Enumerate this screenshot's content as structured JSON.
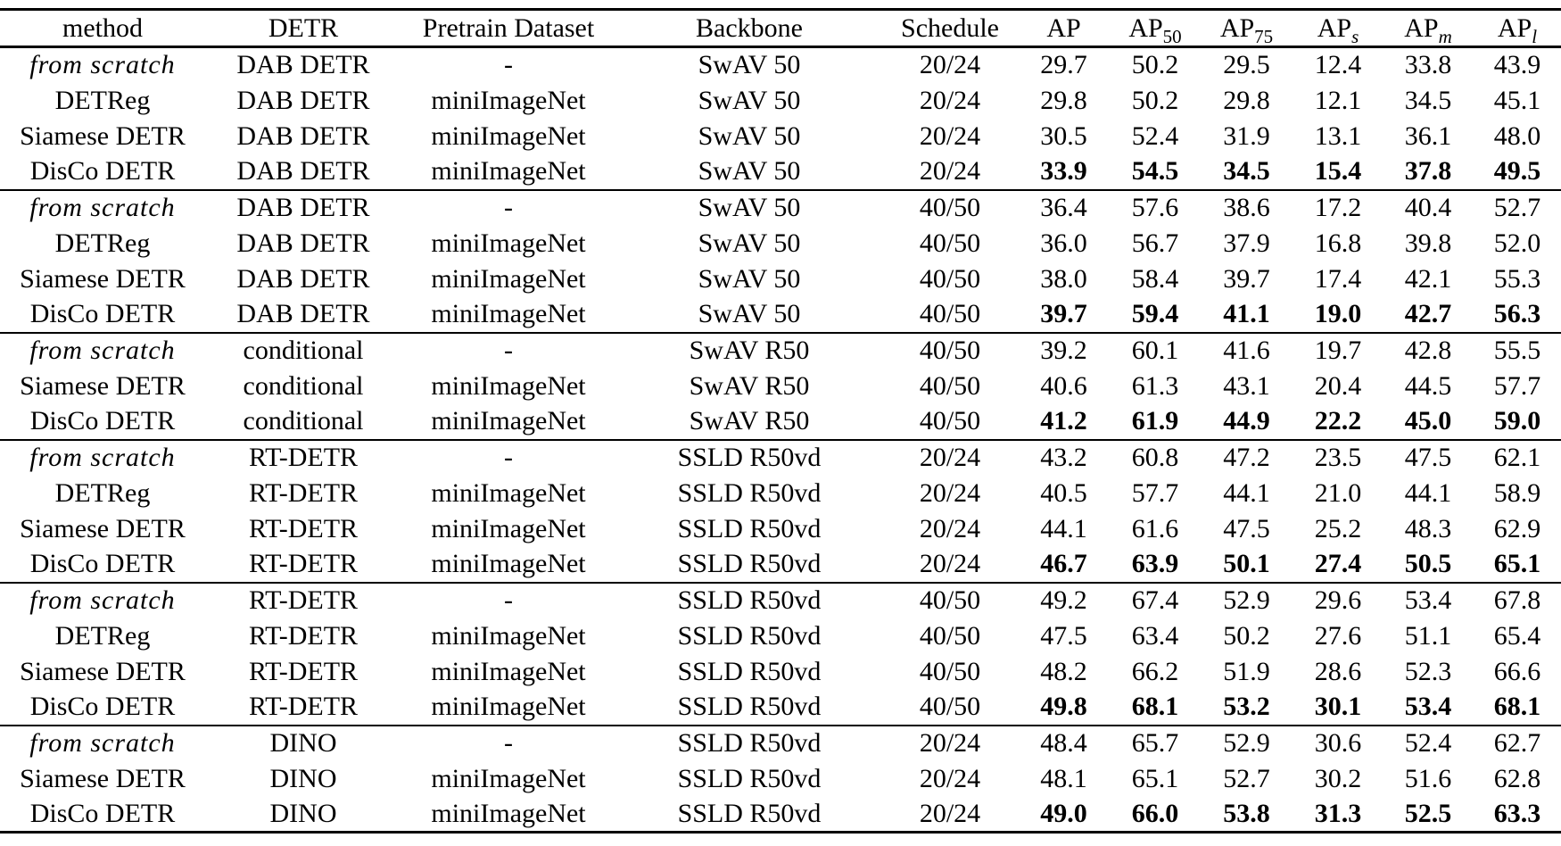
{
  "page": {
    "background_color": "#ffffff",
    "text_color": "#000000",
    "rule_color": "#000000"
  },
  "table": {
    "headers": [
      {
        "text": "method",
        "sub": ""
      },
      {
        "text": "DETR",
        "sub": ""
      },
      {
        "text": "Pretrain Dataset",
        "sub": ""
      },
      {
        "text": "Backbone",
        "sub": ""
      },
      {
        "text": "Schedule",
        "sub": ""
      },
      {
        "text": "AP",
        "sub": ""
      },
      {
        "text": "AP",
        "sub": "50"
      },
      {
        "text": "AP",
        "sub": "75"
      },
      {
        "text": "AP",
        "sub": "s"
      },
      {
        "text": "AP",
        "sub": "m"
      },
      {
        "text": "AP",
        "sub": "l"
      }
    ],
    "groups": [
      {
        "rows": [
          {
            "method": "from scratch",
            "method_italic": true,
            "detr": "DAB DETR",
            "pretrain": "-",
            "backbone": "SwAV 50",
            "schedule": "20/24",
            "bold": false,
            "ap": [
              "29.7",
              "50.2",
              "29.5",
              "12.4",
              "33.8",
              "43.9"
            ]
          },
          {
            "method": "DETReg",
            "method_italic": false,
            "detr": "DAB DETR",
            "pretrain": "miniImageNet",
            "backbone": "SwAV 50",
            "schedule": "20/24",
            "bold": false,
            "ap": [
              "29.8",
              "50.2",
              "29.8",
              "12.1",
              "34.5",
              "45.1"
            ]
          },
          {
            "method": "Siamese DETR",
            "method_italic": false,
            "detr": "DAB DETR",
            "pretrain": "miniImageNet",
            "backbone": "SwAV 50",
            "schedule": "20/24",
            "bold": false,
            "ap": [
              "30.5",
              "52.4",
              "31.9",
              "13.1",
              "36.1",
              "48.0"
            ]
          },
          {
            "method": "DisCo DETR",
            "method_italic": false,
            "detr": "DAB DETR",
            "pretrain": "miniImageNet",
            "backbone": "SwAV 50",
            "schedule": "20/24",
            "bold": true,
            "ap": [
              "33.9",
              "54.5",
              "34.5",
              "15.4",
              "37.8",
              "49.5"
            ]
          }
        ]
      },
      {
        "rows": [
          {
            "method": "from scratch",
            "method_italic": true,
            "detr": "DAB DETR",
            "pretrain": "-",
            "backbone": "SwAV 50",
            "schedule": "40/50",
            "bold": false,
            "ap": [
              "36.4",
              "57.6",
              "38.6",
              "17.2",
              "40.4",
              "52.7"
            ]
          },
          {
            "method": "DETReg",
            "method_italic": false,
            "detr": "DAB DETR",
            "pretrain": "miniImageNet",
            "backbone": "SwAV 50",
            "schedule": "40/50",
            "bold": false,
            "ap": [
              "36.0",
              "56.7",
              "37.9",
              "16.8",
              "39.8",
              "52.0"
            ]
          },
          {
            "method": "Siamese DETR",
            "method_italic": false,
            "detr": "DAB DETR",
            "pretrain": "miniImageNet",
            "backbone": "SwAV 50",
            "schedule": "40/50",
            "bold": false,
            "ap": [
              "38.0",
              "58.4",
              "39.7",
              "17.4",
              "42.1",
              "55.3"
            ]
          },
          {
            "method": "DisCo DETR",
            "method_italic": false,
            "detr": "DAB DETR",
            "pretrain": "miniImageNet",
            "backbone": "SwAV 50",
            "schedule": "40/50",
            "bold": true,
            "ap": [
              "39.7",
              "59.4",
              "41.1",
              "19.0",
              "42.7",
              "56.3"
            ]
          }
        ]
      },
      {
        "rows": [
          {
            "method": "from scratch",
            "method_italic": true,
            "detr": "conditional",
            "pretrain": "-",
            "backbone": "SwAV R50",
            "schedule": "40/50",
            "bold": false,
            "ap": [
              "39.2",
              "60.1",
              "41.6",
              "19.7",
              "42.8",
              "55.5"
            ]
          },
          {
            "method": "Siamese DETR",
            "method_italic": false,
            "detr": "conditional",
            "pretrain": "miniImageNet",
            "backbone": "SwAV R50",
            "schedule": "40/50",
            "bold": false,
            "ap": [
              "40.6",
              "61.3",
              "43.1",
              "20.4",
              "44.5",
              "57.7"
            ]
          },
          {
            "method": "DisCo DETR",
            "method_italic": false,
            "detr": "conditional",
            "pretrain": "miniImageNet",
            "backbone": "SwAV R50",
            "schedule": "40/50",
            "bold": true,
            "ap": [
              "41.2",
              "61.9",
              "44.9",
              "22.2",
              "45.0",
              "59.0"
            ]
          }
        ]
      },
      {
        "rows": [
          {
            "method": "from scratch",
            "method_italic": true,
            "detr": "RT-DETR",
            "pretrain": "-",
            "backbone": "SSLD R50vd",
            "schedule": "20/24",
            "bold": false,
            "ap": [
              "43.2",
              "60.8",
              "47.2",
              "23.5",
              "47.5",
              "62.1"
            ]
          },
          {
            "method": "DETReg",
            "method_italic": false,
            "detr": "RT-DETR",
            "pretrain": "miniImageNet",
            "backbone": "SSLD R50vd",
            "schedule": "20/24",
            "bold": false,
            "ap": [
              "40.5",
              "57.7",
              "44.1",
              "21.0",
              "44.1",
              "58.9"
            ]
          },
          {
            "method": "Siamese DETR",
            "method_italic": false,
            "detr": "RT-DETR",
            "pretrain": "miniImageNet",
            "backbone": "SSLD R50vd",
            "schedule": "20/24",
            "bold": false,
            "ap": [
              "44.1",
              "61.6",
              "47.5",
              "25.2",
              "48.3",
              "62.9"
            ]
          },
          {
            "method": "DisCo DETR",
            "method_italic": false,
            "detr": "RT-DETR",
            "pretrain": "miniImageNet",
            "backbone": "SSLD R50vd",
            "schedule": "20/24",
            "bold": true,
            "ap": [
              "46.7",
              "63.9",
              "50.1",
              "27.4",
              "50.5",
              "65.1"
            ]
          }
        ]
      },
      {
        "rows": [
          {
            "method": "from scratch",
            "method_italic": true,
            "detr": "RT-DETR",
            "pretrain": "-",
            "backbone": "SSLD R50vd",
            "schedule": "40/50",
            "bold": false,
            "ap": [
              "49.2",
              "67.4",
              "52.9",
              "29.6",
              "53.4",
              "67.8"
            ]
          },
          {
            "method": "DETReg",
            "method_italic": false,
            "detr": "RT-DETR",
            "pretrain": "miniImageNet",
            "backbone": "SSLD R50vd",
            "schedule": "40/50",
            "bold": false,
            "ap": [
              "47.5",
              "63.4",
              "50.2",
              "27.6",
              "51.1",
              "65.4"
            ]
          },
          {
            "method": "Siamese DETR",
            "method_italic": false,
            "detr": "RT-DETR",
            "pretrain": "miniImageNet",
            "backbone": "SSLD R50vd",
            "schedule": "40/50",
            "bold": false,
            "ap": [
              "48.2",
              "66.2",
              "51.9",
              "28.6",
              "52.3",
              "66.6"
            ]
          },
          {
            "method": "DisCo DETR",
            "method_italic": false,
            "detr": "RT-DETR",
            "pretrain": "miniImageNet",
            "backbone": "SSLD R50vd",
            "schedule": "40/50",
            "bold": true,
            "ap": [
              "49.8",
              "68.1",
              "53.2",
              "30.1",
              "53.4",
              "68.1"
            ]
          }
        ]
      },
      {
        "rows": [
          {
            "method": "from scratch",
            "method_italic": true,
            "detr": "DINO",
            "pretrain": "-",
            "backbone": "SSLD R50vd",
            "schedule": "20/24",
            "bold": false,
            "ap": [
              "48.4",
              "65.7",
              "52.9",
              "30.6",
              "52.4",
              "62.7"
            ]
          },
          {
            "method": "Siamese DETR",
            "method_italic": false,
            "detr": "DINO",
            "pretrain": "miniImageNet",
            "backbone": "SSLD R50vd",
            "schedule": "20/24",
            "bold": false,
            "ap": [
              "48.1",
              "65.1",
              "52.7",
              "30.2",
              "51.6",
              "62.8"
            ]
          },
          {
            "method": "DisCo DETR",
            "method_italic": false,
            "detr": "DINO",
            "pretrain": "miniImageNet",
            "backbone": "SSLD R50vd",
            "schedule": "20/24",
            "bold": true,
            "ap": [
              "49.0",
              "66.0",
              "53.8",
              "31.3",
              "52.5",
              "63.3"
            ]
          }
        ]
      }
    ]
  }
}
